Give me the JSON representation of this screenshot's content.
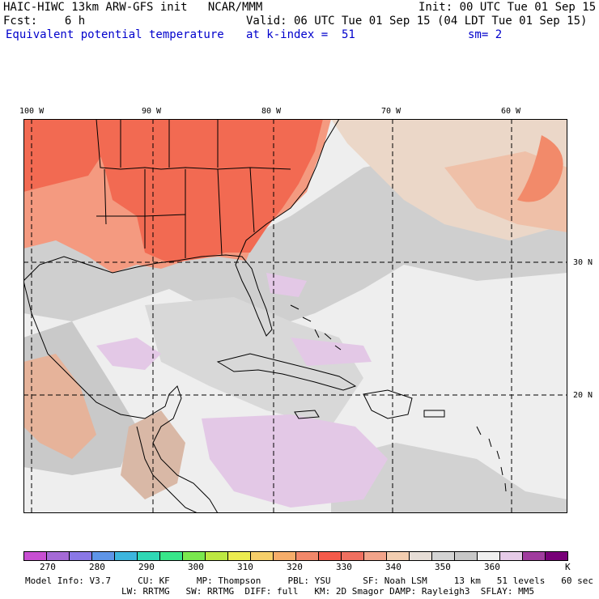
{
  "header": {
    "model": "HAIC-HIWC 13km ARW-GFS init   NCAR/MMM",
    "init": "Init: 00 UTC Tue 01 Sep 15",
    "fcst": "Fcst:    6 h",
    "valid": "Valid: 06 UTC Tue 01 Sep 15 (04 LDT Tue 01 Sep 15)",
    "field": "Equivalent potential temperature",
    "level": "at k-index =  51",
    "smooth": "sm= 2"
  },
  "map": {
    "lon_labels": [
      "100 W",
      "90 W",
      "80 W",
      "70 W",
      "60 W"
    ],
    "lat_labels": [
      "30 N",
      "20 N"
    ]
  },
  "colorbar": {
    "colors": [
      "#c84fd2",
      "#a56ad6",
      "#8a78e6",
      "#5e95e8",
      "#3db6de",
      "#2fd8b5",
      "#38e68a",
      "#7ae84e",
      "#bde842",
      "#ecec50",
      "#f6cf6a",
      "#f6ad6a",
      "#f2886a",
      "#f45a4a",
      "#f07060",
      "#f2a48a",
      "#f2cdb0",
      "#e6ddd6",
      "#d4d4d4",
      "#c8c8c8",
      "#f0f0f0",
      "#e6cbe8",
      "#a03c9e",
      "#780078"
    ],
    "tick_labels": [
      "270",
      "280",
      "290",
      "300",
      "310",
      "320",
      "330",
      "340",
      "350",
      "360",
      "K"
    ]
  },
  "footer": {
    "line1": "Model Info: V3.7     CU: KF     MP: Thompson     PBL: YSU      SF: Noah LSM     13 km   51 levels   60 sec",
    "line2": "LW: RRTMG   SW: RRTMG  DIFF: full   KM: 2D Smagor DAMP: Rayleigh3  SFLAY: MM5"
  }
}
